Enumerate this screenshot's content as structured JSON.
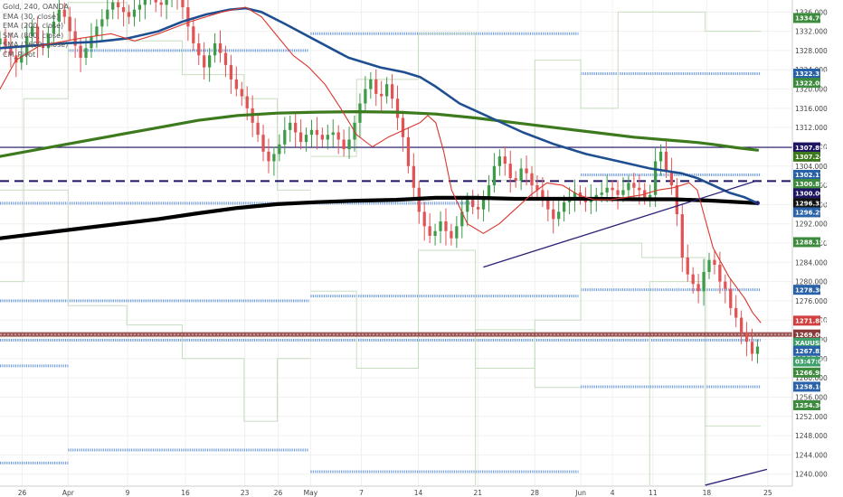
{
  "legend": {
    "title": "Gold, 240, OANDA",
    "lines": [
      "EMA (30, close)",
      "EMA (200, close)",
      "SMA (800, close)",
      "SMA (1600, close)",
      "CM_Pivot"
    ]
  },
  "chart_data": {
    "type": "candlestick",
    "symbol": "XAUUSD",
    "ylim": [
      1237.5,
      1338.5
    ],
    "xlim": [
      0,
      100
    ],
    "y_ticks": [
      1240,
      1244,
      1248,
      1252,
      1256,
      1260,
      1264,
      1268,
      1272,
      1276,
      1280,
      1284,
      1288,
      1292,
      1296,
      1300,
      1304,
      1308,
      1312,
      1316,
      1320,
      1324,
      1328,
      1332,
      1336
    ],
    "x_ticks": [
      {
        "label": "26",
        "x": 2.8
      },
      {
        "label": "Apr",
        "x": 8.6
      },
      {
        "label": "9",
        "x": 16.1
      },
      {
        "label": "16",
        "x": 23.4
      },
      {
        "label": "23",
        "x": 30.9
      },
      {
        "label": "26",
        "x": 35.1
      },
      {
        "label": "May",
        "x": 39.2
      },
      {
        "label": "7",
        "x": 45.6
      },
      {
        "label": "14",
        "x": 52.8
      },
      {
        "label": "21",
        "x": 60.3
      },
      {
        "label": "28",
        "x": 67.5
      },
      {
        "label": "Jun",
        "x": 73.3
      },
      {
        "label": "4",
        "x": 77.3
      },
      {
        "label": "11",
        "x": 82.4
      },
      {
        "label": "18",
        "x": 89.2
      },
      {
        "label": "25",
        "x": 96.9
      }
    ],
    "candles_close": [
      1330.5,
      1329,
      1327,
      1325.5,
      1327,
      1331,
      1333,
      1329.5,
      1328.5,
      1331.5,
      1334,
      1336.5,
      1335,
      1332,
      1329,
      1326.5,
      1328.5,
      1331,
      1333,
      1334.5,
      1336.5,
      1338,
      1337,
      1336,
      1335,
      1336.5,
      1337.5,
      1339,
      1339.5,
      1338,
      1337.5,
      1338.5,
      1339,
      1338.5,
      1337,
      1333,
      1329.5,
      1327,
      1324.5,
      1327,
      1329.5,
      1327.5,
      1325,
      1322,
      1320,
      1318.5,
      1316,
      1313,
      1310.5,
      1307,
      1305,
      1306.5,
      1308.5,
      1311.5,
      1313,
      1311,
      1309,
      1310.5,
      1311.5,
      1310.5,
      1309.5,
      1310.5,
      1311,
      1309.5,
      1307.5,
      1309.5,
      1313,
      1317,
      1320,
      1322,
      1319,
      1318.5,
      1321,
      1318,
      1314,
      1310,
      1304,
      1299.5,
      1294.5,
      1291.5,
      1289.5,
      1290.5,
      1292.5,
      1290.5,
      1289,
      1291.5,
      1294.5,
      1297,
      1295.5,
      1295,
      1297.5,
      1300,
      1304,
      1306,
      1304.5,
      1301.5,
      1301,
      1303.5,
      1302.5,
      1300,
      1299,
      1297.5,
      1295,
      1293,
      1294.5,
      1296.5,
      1297.5,
      1298.5,
      1297.5,
      1296.5,
      1297.5,
      1298,
      1298.5,
      1299.5,
      1299,
      1298,
      1299,
      1300.5,
      1299.5,
      1299,
      1297.5,
      1298,
      1305,
      1307,
      1303,
      1300,
      1294,
      1285,
      1281.5,
      1279.5,
      1278,
      1282,
      1284.5,
      1283.5,
      1280,
      1278.5,
      1274.5,
      1272.5,
      1269.5,
      1267.5,
      1265,
      1266.5
    ],
    "ema30": [
      [
        0,
        1320
      ],
      [
        2,
        1326
      ],
      [
        5,
        1329
      ],
      [
        10,
        1330.5
      ],
      [
        14,
        1331.5
      ],
      [
        17,
        1330
      ],
      [
        20,
        1331.5
      ],
      [
        24,
        1334
      ],
      [
        28,
        1336
      ],
      [
        31,
        1337
      ],
      [
        33,
        1335
      ],
      [
        35,
        1331
      ],
      [
        37,
        1327
      ],
      [
        39,
        1324.5
      ],
      [
        41,
        1321
      ],
      [
        43,
        1316
      ],
      [
        45,
        1310.5
      ],
      [
        47,
        1308
      ],
      [
        49,
        1310
      ],
      [
        51,
        1311.5
      ],
      [
        53,
        1313
      ],
      [
        54,
        1314.5
      ],
      [
        55,
        1313
      ],
      [
        56,
        1307
      ],
      [
        57,
        1299
      ],
      [
        59,
        1292
      ],
      [
        61,
        1290
      ],
      [
        63,
        1292
      ],
      [
        65,
        1295
      ],
      [
        67,
        1298
      ],
      [
        69,
        1300.5
      ],
      [
        71,
        1300
      ],
      [
        73,
        1298
      ],
      [
        75,
        1297
      ],
      [
        77,
        1297
      ],
      [
        79,
        1297.5
      ],
      [
        81,
        1298
      ],
      [
        83,
        1299
      ],
      [
        85,
        1299.5
      ],
      [
        87,
        1300.5
      ],
      [
        88,
        1299
      ],
      [
        89,
        1293
      ],
      [
        90,
        1287
      ],
      [
        92,
        1281
      ],
      [
        94,
        1276.5
      ],
      [
        95,
        1273.5
      ],
      [
        96,
        1271.5
      ]
    ],
    "ema200": [
      [
        0,
        1328.5
      ],
      [
        4,
        1329
      ],
      [
        8,
        1329.5
      ],
      [
        12,
        1329.8
      ],
      [
        16,
        1330.5
      ],
      [
        20,
        1332
      ],
      [
        23,
        1334
      ],
      [
        26,
        1335.5
      ],
      [
        29,
        1336.5
      ],
      [
        31,
        1336.8
      ],
      [
        33,
        1336
      ],
      [
        36,
        1333.5
      ],
      [
        40,
        1330
      ],
      [
        44,
        1326.5
      ],
      [
        48,
        1324.5
      ],
      [
        51,
        1323.5
      ],
      [
        53,
        1322.5
      ],
      [
        55,
        1320.5
      ],
      [
        58,
        1317
      ],
      [
        62,
        1314
      ],
      [
        66,
        1311
      ],
      [
        70,
        1308.5
      ],
      [
        74,
        1306.5
      ],
      [
        78,
        1305
      ],
      [
        82,
        1303.5
      ],
      [
        86,
        1302.5
      ],
      [
        88,
        1301.5
      ],
      [
        90,
        1300
      ],
      [
        92,
        1298.5
      ],
      [
        94,
        1297.5
      ],
      [
        95.6,
        1296.3
      ]
    ],
    "sma800": [
      [
        0,
        1306
      ],
      [
        5,
        1307.5
      ],
      [
        10,
        1309
      ],
      [
        15,
        1310.5
      ],
      [
        20,
        1312
      ],
      [
        25,
        1313.5
      ],
      [
        30,
        1314.5
      ],
      [
        35,
        1315
      ],
      [
        40,
        1315.2
      ],
      [
        45,
        1315.3
      ],
      [
        50,
        1315.2
      ],
      [
        55,
        1314.8
      ],
      [
        60,
        1314
      ],
      [
        65,
        1313
      ],
      [
        70,
        1312
      ],
      [
        75,
        1311
      ],
      [
        80,
        1310
      ],
      [
        85,
        1309.3
      ],
      [
        88,
        1308.9
      ],
      [
        90,
        1308.5
      ],
      [
        93,
        1307.8
      ],
      [
        95.6,
        1307.3
      ]
    ],
    "sma1600": [
      [
        0,
        1289
      ],
      [
        5,
        1290
      ],
      [
        10,
        1291
      ],
      [
        15,
        1292
      ],
      [
        20,
        1293
      ],
      [
        25,
        1294.2
      ],
      [
        30,
        1295.3
      ],
      [
        35,
        1296.1
      ],
      [
        40,
        1296.5
      ],
      [
        45,
        1296.8
      ],
      [
        50,
        1297
      ],
      [
        55,
        1297.4
      ],
      [
        60,
        1297.4
      ],
      [
        65,
        1297.2
      ],
      [
        70,
        1297.2
      ],
      [
        75,
        1297.2
      ],
      [
        80,
        1297.1
      ],
      [
        85,
        1297.1
      ],
      [
        90,
        1296.8
      ],
      [
        95.6,
        1296.3
      ]
    ],
    "horizontal_levels": [
      {
        "price": 1307.89,
        "style": "solid",
        "color": "#1e1464"
      },
      {
        "price": 1300.874,
        "style": "dashed",
        "color": "#1e1464"
      },
      {
        "price": 1269.009,
        "style": "thick",
        "color": "#8b3a3a"
      }
    ],
    "trendlines": [
      {
        "from": [
          61,
          1283
        ],
        "to": [
          95.6,
          1301
        ]
      },
      {
        "from": [
          89,
          1237.7
        ],
        "to": [
          96.8,
          1241
        ]
      }
    ],
    "price_badges": [
      {
        "label": "1334.764",
        "price": 1334.764,
        "color": "#3d8b3d"
      },
      {
        "label": "1322.318",
        "price": 1323.2,
        "color": "#2962a8"
      },
      {
        "label": "1322.084",
        "price": 1321.3,
        "color": "#3d8b3d"
      },
      {
        "label": "1307.890",
        "price": 1307.89,
        "color": "#1e1464"
      },
      {
        "label": "1307.248",
        "price": 1305.95,
        "color": "#3d7a1e"
      },
      {
        "label": "1302.175",
        "price": 1302.175,
        "color": "#2962a8"
      },
      {
        "label": "1300.874",
        "price": 1300.3,
        "color": "#3d8b3d"
      },
      {
        "label": "1300.000",
        "price": 1298.35,
        "color": "#1e1464"
      },
      {
        "label": "1296.320",
        "price": 1296.32,
        "color": "#111111"
      },
      {
        "label": "1296.294",
        "price": 1294.4,
        "color": "#2962a8"
      },
      {
        "label": "1288.194",
        "price": 1288.194,
        "color": "#3d8b3d"
      },
      {
        "label": "1278.303",
        "price": 1278.303,
        "color": "#2962a8"
      },
      {
        "label": "1271.886",
        "price": 1271.886,
        "color": "#d04040"
      },
      {
        "label": "1269.009",
        "price": 1269.009,
        "color": "#8b3a3a"
      },
      {
        "label": "XAUUSD",
        "price": 1267.3,
        "color": "#3da06a"
      },
      {
        "label": "1267.822",
        "price": 1265.6,
        "color": "#2962a8"
      },
      {
        "label": "03:47:07",
        "price": 1263.4,
        "color": "#3da06a"
      },
      {
        "label": "1266.985",
        "price": 1261.1,
        "color": "#3d8b3d"
      },
      {
        "label": "1258.160",
        "price": 1258.16,
        "color": "#2962a8"
      },
      {
        "label": "1254.305",
        "price": 1254.305,
        "color": "#3d8b3d"
      }
    ],
    "pivot_segments": [
      {
        "x1": 0,
        "x2": 8.6,
        "price": 1262.5
      },
      {
        "x1": 0,
        "x2": 39,
        "price": 1276
      },
      {
        "x1": 8.6,
        "x2": 39,
        "price": 1245
      },
      {
        "x1": 0,
        "x2": 8.6,
        "price": 1242.3
      },
      {
        "x1": 8.6,
        "x2": 39,
        "price": 1328
      },
      {
        "x1": 39.2,
        "x2": 73,
        "price": 1331.5
      },
      {
        "x1": 39.2,
        "x2": 73,
        "price": 1277
      },
      {
        "x1": 39.2,
        "x2": 73,
        "price": 1240.5
      },
      {
        "x1": 73.3,
        "x2": 96,
        "price": 1323.2
      },
      {
        "x1": 73.3,
        "x2": 96,
        "price": 1302.175
      },
      {
        "x1": 73.3,
        "x2": 96,
        "price": 1278.303
      },
      {
        "x1": 73.3,
        "x2": 96,
        "price": 1258.16
      },
      {
        "x1": 0,
        "x2": 96,
        "price": 1267.822
      },
      {
        "x1": 0,
        "x2": 60,
        "price": 1296.294
      }
    ]
  }
}
